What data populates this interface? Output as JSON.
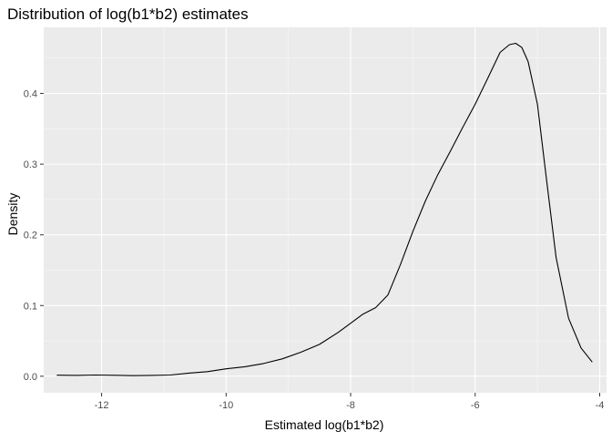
{
  "chart_data": {
    "type": "line",
    "title": "Distribution of log(b1*b2) estimates",
    "xlabel": "Estimated log(b1*b2)",
    "ylabel": "Density",
    "xlim": [
      -12.93,
      -3.89
    ],
    "ylim": [
      -0.0234,
      0.4935
    ],
    "x_ticks": [
      -12,
      -10,
      -8,
      -6,
      -4
    ],
    "x_tick_labels": [
      "-12",
      "-10",
      "-8",
      "-6",
      "-4"
    ],
    "y_ticks": [
      0.0,
      0.1,
      0.2,
      0.3,
      0.4
    ],
    "y_tick_labels": [
      "0.0",
      "0.1",
      "0.2",
      "0.3",
      "0.4"
    ],
    "x_minor": [
      -13,
      -11,
      -9,
      -7,
      -5
    ],
    "y_minor": [
      0.05,
      0.15,
      0.25,
      0.35,
      0.45
    ],
    "grid": true,
    "legend": "none",
    "series": [
      {
        "x": [
          -12.72,
          -12.4,
          -12.1,
          -11.8,
          -11.5,
          -11.2,
          -10.9,
          -10.6,
          -10.3,
          -10.0,
          -9.7,
          -9.4,
          -9.1,
          -8.8,
          -8.5,
          -8.2,
          -8.0,
          -7.8,
          -7.6,
          -7.4,
          -7.2,
          -7.0,
          -6.8,
          -6.6,
          -6.4,
          -6.2,
          -6.0,
          -5.8,
          -5.6,
          -5.45,
          -5.35,
          -5.25,
          -5.15,
          -5.0,
          -4.85,
          -4.7,
          -4.5,
          -4.3,
          -4.12
        ],
        "y": [
          0.0015,
          0.0012,
          0.0018,
          0.0014,
          0.0008,
          0.0012,
          0.0018,
          0.0045,
          0.0065,
          0.0105,
          0.0135,
          0.018,
          0.0245,
          0.034,
          0.045,
          0.062,
          0.075,
          0.088,
          0.097,
          0.115,
          0.158,
          0.205,
          0.248,
          0.285,
          0.318,
          0.352,
          0.385,
          0.421,
          0.458,
          0.469,
          0.471,
          0.465,
          0.445,
          0.385,
          0.275,
          0.168,
          0.082,
          0.04,
          0.02
        ]
      }
    ],
    "colors": {
      "panel": "#ebebeb",
      "grid_major": "#ffffff",
      "line": "#000000",
      "tick": "#333333",
      "tick_label": "#4d4d4d"
    }
  }
}
